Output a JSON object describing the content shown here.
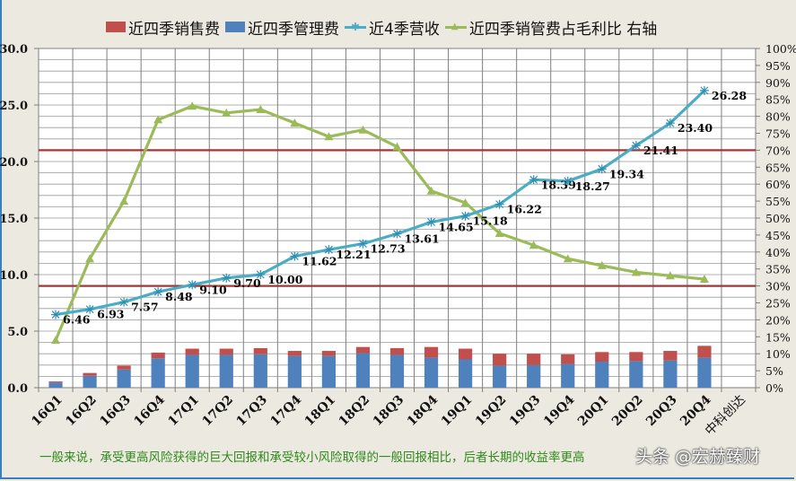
{
  "legend": {
    "items": [
      {
        "label": "近四季销售费",
        "color": "#C0504D",
        "kind": "bar"
      },
      {
        "label": "近四季管理费",
        "color": "#4F81BD",
        "kind": "bar"
      },
      {
        "label": "近4季营收",
        "color": "#4BACC6",
        "kind": "line",
        "marker": "✱"
      },
      {
        "label": "近四季销管费占毛利比 右轴",
        "color": "#9BBB59",
        "kind": "line",
        "marker": "▲"
      }
    ]
  },
  "footer": {
    "note": "一般来说，承受更高风险获得的巨大回报和承受较小风险取得的一般回报相比，后者长期的收益率更高",
    "watermark": "头条 @宏赫臻财"
  },
  "chart_data": {
    "type": "bar",
    "title": "",
    "categories": [
      "16Q1",
      "16Q2",
      "16Q3",
      "16Q4",
      "17Q1",
      "17Q2",
      "17Q3",
      "17Q4",
      "18Q1",
      "18Q2",
      "18Q3",
      "18Q4",
      "19Q1",
      "19Q2",
      "19Q3",
      "19Q4",
      "20Q1",
      "20Q2",
      "20Q3",
      "20Q4",
      "中科创达"
    ],
    "xlabel": "",
    "ylabel": "",
    "ylim": [
      0,
      30
    ],
    "yticks": [
      "0.0",
      "5.0",
      "10.0",
      "15.0",
      "20.0",
      "25.0",
      "30.0"
    ],
    "y2lim": [
      0,
      1
    ],
    "y2ticks": [
      "0%",
      "5%",
      "10%",
      "15%",
      "20%",
      "25%",
      "30%",
      "35%",
      "40%",
      "45%",
      "50%",
      "55%",
      "60%",
      "65%",
      "70%",
      "75%",
      "80%",
      "85%",
      "90%",
      "95%",
      "100%"
    ],
    "grid": true,
    "legend_position": "top",
    "series": [
      {
        "name": "近四季管理费",
        "type": "stacked-bar",
        "axis": "left",
        "color": "#4F81BD",
        "values": [
          0.45,
          1.05,
          1.6,
          2.6,
          2.9,
          2.9,
          2.95,
          2.8,
          2.8,
          3.05,
          2.9,
          2.65,
          2.5,
          1.95,
          2.0,
          2.1,
          2.3,
          2.35,
          2.4,
          2.65,
          null
        ]
      },
      {
        "name": "近四季销售费",
        "type": "stacked-bar",
        "axis": "left",
        "color": "#C0504D",
        "values": [
          0.1,
          0.25,
          0.35,
          0.5,
          0.55,
          0.55,
          0.55,
          0.45,
          0.45,
          0.55,
          0.6,
          0.95,
          0.95,
          1.05,
          1.0,
          0.85,
          0.85,
          0.8,
          0.85,
          1.05,
          null
        ]
      },
      {
        "name": "近4季营收",
        "type": "line",
        "axis": "left",
        "color": "#4BACC6",
        "values": [
          6.46,
          6.93,
          7.57,
          8.48,
          9.1,
          9.7,
          10.0,
          11.62,
          12.21,
          12.73,
          13.61,
          14.65,
          15.18,
          16.22,
          18.39,
          18.27,
          19.34,
          21.41,
          23.4,
          26.28,
          null
        ],
        "labels": [
          "6.46",
          "6.93",
          "7.57",
          "8.48",
          "9.10",
          "9.70",
          "10.00",
          "11.62",
          "12.21",
          "12.73",
          "13.61",
          "14.65",
          "15.18",
          "16.22",
          "18.39",
          "18.27",
          "19.34",
          "21.41",
          "23.40",
          "26.28"
        ]
      },
      {
        "name": "近四季销管费占毛利比 右轴",
        "type": "line",
        "axis": "right",
        "color": "#9BBB59",
        "values": [
          0.14,
          0.38,
          0.55,
          0.79,
          0.83,
          0.81,
          0.82,
          0.78,
          0.74,
          0.76,
          0.71,
          0.58,
          0.545,
          0.455,
          0.42,
          0.38,
          0.36,
          0.34,
          0.33,
          0.32,
          null
        ]
      }
    ],
    "reference_lines": [
      {
        "axis": "right",
        "value": 0.7,
        "color": "#A0383A"
      },
      {
        "axis": "right",
        "value": 0.3,
        "color": "#A0383A"
      }
    ]
  }
}
